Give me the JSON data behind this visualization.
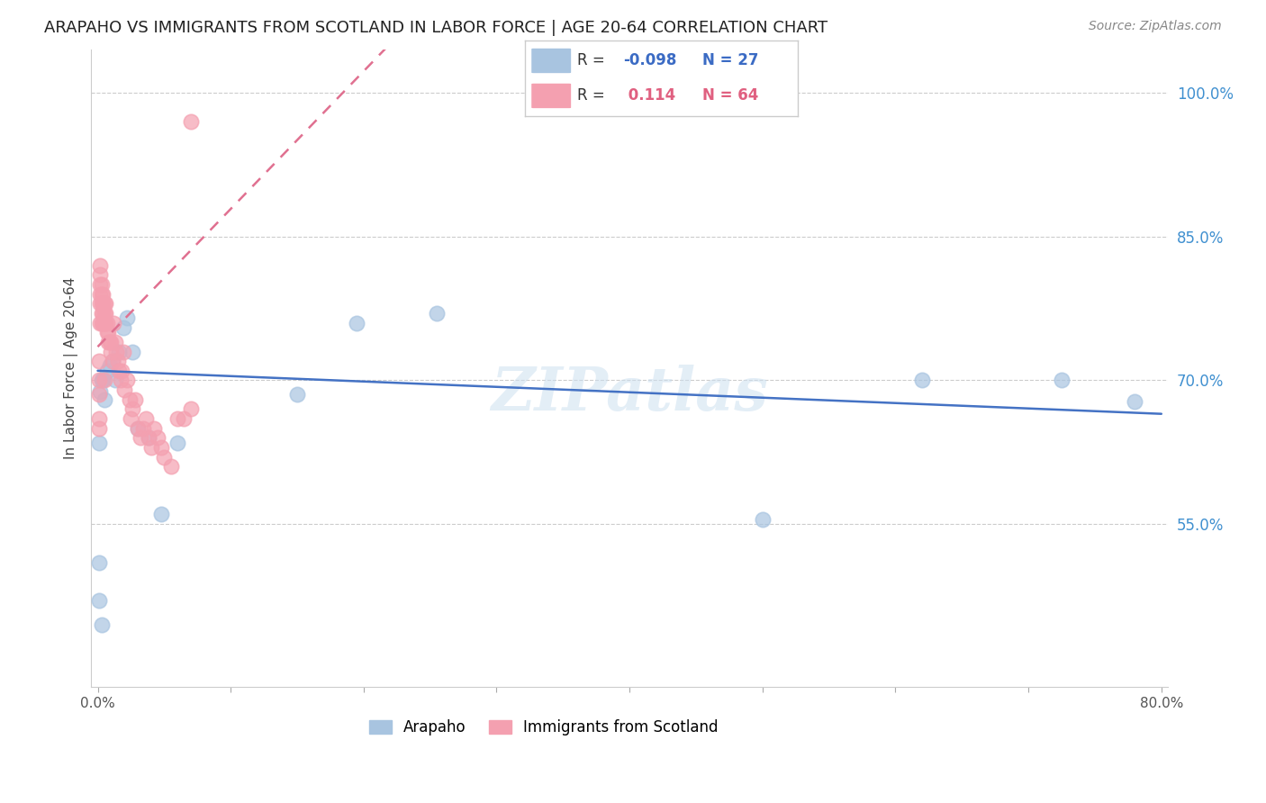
{
  "title": "ARAPAHO VS IMMIGRANTS FROM SCOTLAND IN LABOR FORCE | AGE 20-64 CORRELATION CHART",
  "source": "Source: ZipAtlas.com",
  "ylabel": "In Labor Force | Age 20-64",
  "xlim": [
    -0.005,
    0.805
  ],
  "ylim": [
    0.38,
    1.045
  ],
  "yticks": [
    0.55,
    0.7,
    0.85,
    1.0
  ],
  "yticklabels": [
    "55.0%",
    "70.0%",
    "85.0%",
    "100.0%"
  ],
  "arapaho_color": "#a8c4e0",
  "scotland_color": "#f4a0b0",
  "arapaho_line_color": "#4472c4",
  "scotland_line_color": "#e07090",
  "background_color": "#ffffff",
  "arapaho_x": [
    0.001,
    0.001,
    0.002,
    0.003,
    0.004,
    0.005,
    0.007,
    0.009,
    0.011,
    0.013,
    0.016,
    0.019,
    0.022,
    0.026,
    0.03,
    0.038,
    0.048,
    0.06,
    0.15,
    0.195,
    0.255,
    0.5,
    0.62,
    0.725,
    0.78,
    0.001,
    0.003
  ],
  "arapaho_y": [
    0.51,
    0.635,
    0.688,
    0.7,
    0.7,
    0.68,
    0.71,
    0.715,
    0.72,
    0.7,
    0.73,
    0.755,
    0.765,
    0.73,
    0.65,
    0.64,
    0.56,
    0.635,
    0.685,
    0.76,
    0.77,
    0.555,
    0.7,
    0.7,
    0.678,
    0.47,
    0.445
  ],
  "scotland_x": [
    0.001,
    0.001,
    0.001,
    0.001,
    0.002,
    0.002,
    0.002,
    0.002,
    0.002,
    0.002,
    0.003,
    0.003,
    0.003,
    0.003,
    0.003,
    0.004,
    0.004,
    0.004,
    0.004,
    0.005,
    0.005,
    0.005,
    0.005,
    0.006,
    0.006,
    0.006,
    0.007,
    0.007,
    0.008,
    0.008,
    0.009,
    0.01,
    0.01,
    0.011,
    0.012,
    0.013,
    0.014,
    0.015,
    0.016,
    0.017,
    0.018,
    0.019,
    0.02,
    0.022,
    0.024,
    0.025,
    0.026,
    0.028,
    0.03,
    0.032,
    0.034,
    0.036,
    0.038,
    0.04,
    0.042,
    0.045,
    0.048,
    0.05,
    0.055,
    0.06,
    0.065,
    0.07,
    0.001,
    0.07
  ],
  "scotland_y": [
    0.72,
    0.7,
    0.685,
    0.66,
    0.76,
    0.78,
    0.79,
    0.8,
    0.81,
    0.82,
    0.76,
    0.77,
    0.78,
    0.79,
    0.8,
    0.76,
    0.77,
    0.78,
    0.79,
    0.76,
    0.77,
    0.78,
    0.7,
    0.76,
    0.77,
    0.78,
    0.75,
    0.76,
    0.74,
    0.75,
    0.74,
    0.73,
    0.74,
    0.72,
    0.76,
    0.74,
    0.73,
    0.72,
    0.71,
    0.7,
    0.71,
    0.73,
    0.69,
    0.7,
    0.68,
    0.66,
    0.67,
    0.68,
    0.65,
    0.64,
    0.65,
    0.66,
    0.64,
    0.63,
    0.65,
    0.64,
    0.63,
    0.62,
    0.61,
    0.66,
    0.66,
    0.67,
    0.65,
    0.97
  ],
  "arap_trend_x": [
    0.0,
    0.8
  ],
  "arap_trend_y": [
    0.71,
    0.665
  ],
  "scot_trend_x": [
    0.0,
    0.08
  ],
  "scot_trend_y": [
    0.735,
    0.85
  ],
  "watermark_text": "ZIPatlas",
  "watermark_color": "#cce0f0",
  "legend_R1": "R = -0.098",
  "legend_N1": "N = 27",
  "legend_R2": "R =  0.114",
  "legend_N2": "N = 64"
}
